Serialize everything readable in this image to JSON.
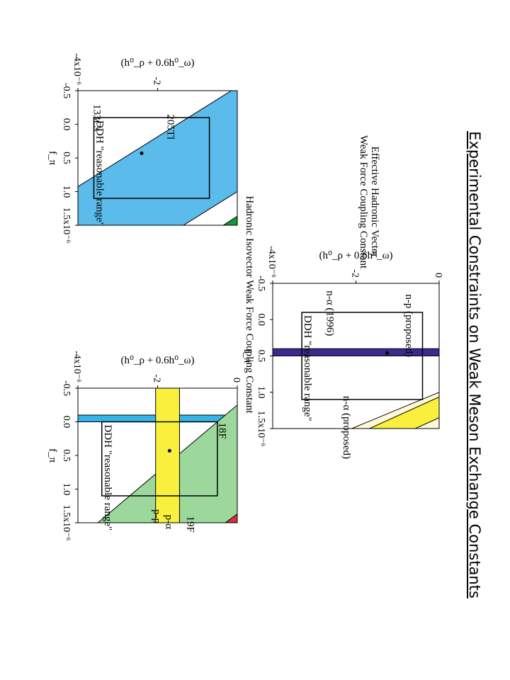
{
  "slide_title": "Experimental Constraints on Weak Meson Exchange Constants",
  "y_axis_label": "Effective Hadronic Vector Weak Force Coupling Constant",
  "x_axis_label": "Hadronic Isovector Weak Force Coupling Constant",
  "chart_data": [
    {
      "type": "area",
      "panel": "top",
      "xlabel": "f_π",
      "ylabel": "(h⁰_ρ + 0.6h⁰_ω)",
      "xlim": [
        -0.5,
        1.5
      ],
      "ylim": [
        0.0,
        -4.0
      ],
      "xticks": [
        "-0.5",
        "0.0",
        "0.5",
        "1.0",
        "1.5x10⁻⁶"
      ],
      "yticks": [
        "0",
        "-2",
        "-4x10⁻⁶"
      ],
      "bands": [
        {
          "name": "n-α (1996)",
          "color": "#fdf8d6",
          "slope": -4.2,
          "intercept_low": 4.2,
          "intercept_high": 6.5,
          "label_pos": [
            -0.4,
            -2.7
          ]
        },
        {
          "name": "n-α (proposed)",
          "color": "#f9ef3c",
          "slope": -3.85,
          "intercept_low": 4.1,
          "intercept_high": 5.2,
          "label_pos": [
            1.05,
            -2.3
          ]
        },
        {
          "name": "n-p (proposed)",
          "color": "#3f2990",
          "x_range": [
            0.4,
            0.5
          ],
          "label_pos": [
            -0.35,
            -0.8
          ]
        }
      ],
      "box": {
        "label": "DDH \"reasonable range\"",
        "x": [
          -0.1,
          1.1
        ],
        "y": [
          -0.4,
          -3.3
        ]
      },
      "point": [
        0.46,
        -1.25
      ]
    },
    {
      "type": "area",
      "panel": "bottom-left",
      "xlabel": "f_π",
      "ylabel": "(h⁰_ρ + 0.6h⁰_ω)",
      "xlim": [
        -0.5,
        1.5
      ],
      "ylim": [
        0.0,
        -4.0
      ],
      "xticks": [
        "-0.5",
        "0.0",
        "0.5",
        "1.0",
        "1.5x10⁻⁶"
      ],
      "yticks": [
        "-2",
        "-4x10⁻⁶"
      ],
      "bands": [
        {
          "name": "205Tl",
          "color": "#5bbbeb",
          "slope": -2.7,
          "intercept_low": -1.5,
          "intercept_high": 2.7,
          "label_pos": [
            -0.15,
            -1.75
          ]
        },
        {
          "name": "133Cs",
          "color": "#13983a",
          "slope": -2.6,
          "intercept_low": 3.55,
          "intercept_high": 4.5,
          "label_pos": [
            -0.3,
            -3.6
          ]
        }
      ],
      "box": {
        "label": "DDH \"reasonable range\"",
        "x": [
          -0.1,
          1.1
        ],
        "y": [
          -0.7,
          -3.6
        ]
      },
      "point": [
        0.43,
        -2.4
      ]
    },
    {
      "type": "area",
      "panel": "bottom-right",
      "xlabel": "f_π",
      "ylabel": "(h⁰_ρ + 0.6h⁰_ω)",
      "xlim": [
        -0.5,
        1.5
      ],
      "ylim": [
        0.0,
        -4.0
      ],
      "xticks": [
        "-0.5",
        "0.0",
        "0.5",
        "1.0",
        "1.5x10⁻⁶"
      ],
      "yticks": [
        "0",
        "-2",
        "-4x10⁻⁶"
      ],
      "bands": [
        {
          "name": "18F",
          "color": "#35b4ea",
          "x_range": [
            -0.1,
            0.0
          ],
          "label_pos": [
            0.01,
            -0.45
          ]
        },
        {
          "name": "19F",
          "color": "#9cd79c",
          "slope": -2.0,
          "intercept_low": -0.5,
          "intercept_high": 3.0,
          "label_pos": [
            1.4,
            -1.25
          ]
        },
        {
          "name": "p-α",
          "color": "#d5303c",
          "slope": -2.3,
          "intercept_low": 3.15,
          "intercept_high": 4.1,
          "label_pos": [
            1.38,
            -1.8
          ]
        },
        {
          "name": "",
          "color": "#3d2491",
          "slope": -2.35,
          "intercept_low": 3.55,
          "intercept_high": 4.7
        },
        {
          "name": "p-p",
          "color": "#f8f03d",
          "y_range": [
            -1.45,
            -2.05
          ],
          "label_pos": [
            1.3,
            -2.1
          ]
        }
      ],
      "box": {
        "label": "DDH \"reasonable range\"",
        "x": [
          0.0,
          1.1
        ],
        "y": [
          -0.5,
          -3.4
        ]
      },
      "point": [
        0.43,
        -1.7
      ]
    }
  ]
}
